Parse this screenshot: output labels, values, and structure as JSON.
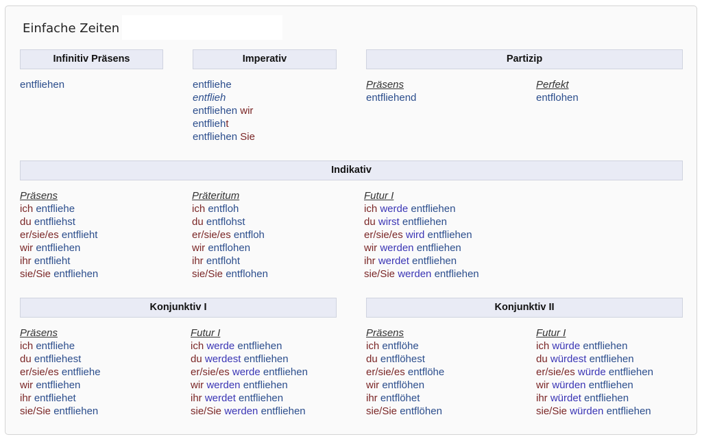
{
  "title": "Einfache Zeiten",
  "headers": [
    "Infinitiv Präsens",
    "Imperativ",
    "Partizip",
    "Indikativ",
    "Konjunktiv I",
    "Konjunktiv II"
  ],
  "colors": {
    "pronoun": "#7a2626",
    "verb": "#2b4d8c",
    "auxiliary": "#3a35b5",
    "header_bg": "#e9ebf5"
  },
  "blocks": [
    {
      "label": "",
      "lines": [
        [
          [
            "entfliehen",
            "v"
          ]
        ]
      ]
    },
    {
      "label": "",
      "lines": [
        [
          [
            "entfliehe",
            "v"
          ]
        ],
        [
          [
            "entflieh",
            "vi"
          ]
        ],
        [
          [
            "entfliehen ",
            "v"
          ],
          [
            "wir",
            "p"
          ]
        ],
        [
          [
            "entflieh",
            "v"
          ],
          [
            "t",
            "p"
          ]
        ],
        [
          [
            "entfliehen ",
            "v"
          ],
          [
            "Sie",
            "p"
          ]
        ]
      ]
    },
    {
      "label": "Präsens",
      "lines": [
        [
          [
            "entfliehend",
            "v"
          ]
        ]
      ]
    },
    {
      "label": "Perfekt",
      "lines": [
        [
          [
            "entflohen",
            "v"
          ]
        ]
      ]
    },
    {
      "label": "Präsens",
      "lines": [
        [
          [
            "ich ",
            "p"
          ],
          [
            "entfliehe",
            "v"
          ]
        ],
        [
          [
            "du ",
            "p"
          ],
          [
            "entfliehst",
            "v"
          ]
        ],
        [
          [
            "er/sie/es ",
            "p"
          ],
          [
            "entflieht",
            "v"
          ]
        ],
        [
          [
            "wir ",
            "p"
          ],
          [
            "entfliehen",
            "v"
          ]
        ],
        [
          [
            "ihr ",
            "p"
          ],
          [
            "entflieht",
            "v"
          ]
        ],
        [
          [
            "sie/Sie ",
            "p"
          ],
          [
            "entfliehen",
            "v"
          ]
        ]
      ]
    },
    {
      "label": "Präteritum",
      "lines": [
        [
          [
            "ich ",
            "p"
          ],
          [
            "entfloh",
            "v"
          ]
        ],
        [
          [
            "du ",
            "p"
          ],
          [
            "entflohst",
            "v"
          ]
        ],
        [
          [
            "er/sie/es ",
            "p"
          ],
          [
            "entfloh",
            "v"
          ]
        ],
        [
          [
            "wir ",
            "p"
          ],
          [
            "entflohen",
            "v"
          ]
        ],
        [
          [
            "ihr ",
            "p"
          ],
          [
            "entfloht",
            "v"
          ]
        ],
        [
          [
            "sie/Sie ",
            "p"
          ],
          [
            "entflohen",
            "v"
          ]
        ]
      ]
    },
    {
      "label": "Futur I",
      "lines": [
        [
          [
            "ich ",
            "p"
          ],
          [
            "werde ",
            "a"
          ],
          [
            "entfliehen",
            "v"
          ]
        ],
        [
          [
            "du ",
            "p"
          ],
          [
            "wirst ",
            "a"
          ],
          [
            "entfliehen",
            "v"
          ]
        ],
        [
          [
            "er/sie/es ",
            "p"
          ],
          [
            "wird ",
            "a"
          ],
          [
            "entfliehen",
            "v"
          ]
        ],
        [
          [
            "wir ",
            "p"
          ],
          [
            "werden ",
            "a"
          ],
          [
            "entfliehen",
            "v"
          ]
        ],
        [
          [
            "ihr ",
            "p"
          ],
          [
            "werdet ",
            "a"
          ],
          [
            "entfliehen",
            "v"
          ]
        ],
        [
          [
            "sie/Sie ",
            "p"
          ],
          [
            "werden ",
            "a"
          ],
          [
            "entfliehen",
            "v"
          ]
        ]
      ]
    },
    {
      "label": "Präsens",
      "lines": [
        [
          [
            "ich ",
            "p"
          ],
          [
            "entfliehe",
            "v"
          ]
        ],
        [
          [
            "du ",
            "p"
          ],
          [
            "entfliehest",
            "v"
          ]
        ],
        [
          [
            "er/sie/es ",
            "p"
          ],
          [
            "entfliehe",
            "v"
          ]
        ],
        [
          [
            "wir ",
            "p"
          ],
          [
            "entfliehen",
            "v"
          ]
        ],
        [
          [
            "ihr ",
            "p"
          ],
          [
            "entfliehet",
            "v"
          ]
        ],
        [
          [
            "sie/Sie ",
            "p"
          ],
          [
            "entfliehen",
            "v"
          ]
        ]
      ]
    },
    {
      "label": "Futur I",
      "lines": [
        [
          [
            "ich ",
            "p"
          ],
          [
            "werde ",
            "a"
          ],
          [
            "entfliehen",
            "v"
          ]
        ],
        [
          [
            "du ",
            "p"
          ],
          [
            "werdest ",
            "a"
          ],
          [
            "entfliehen",
            "v"
          ]
        ],
        [
          [
            "er/sie/es ",
            "p"
          ],
          [
            "werde ",
            "a"
          ],
          [
            "entfliehen",
            "v"
          ]
        ],
        [
          [
            "wir ",
            "p"
          ],
          [
            "werden ",
            "a"
          ],
          [
            "entfliehen",
            "v"
          ]
        ],
        [
          [
            "ihr ",
            "p"
          ],
          [
            "werdet ",
            "a"
          ],
          [
            "entfliehen",
            "v"
          ]
        ],
        [
          [
            "sie/Sie ",
            "p"
          ],
          [
            "werden ",
            "a"
          ],
          [
            "entfliehen",
            "v"
          ]
        ]
      ]
    },
    {
      "label": "Präsens",
      "lines": [
        [
          [
            "ich ",
            "p"
          ],
          [
            "entflöhe",
            "v"
          ]
        ],
        [
          [
            "du ",
            "p"
          ],
          [
            "entflöhest",
            "v"
          ]
        ],
        [
          [
            "er/sie/es ",
            "p"
          ],
          [
            "entflöhe",
            "v"
          ]
        ],
        [
          [
            "wir ",
            "p"
          ],
          [
            "entflöhen",
            "v"
          ]
        ],
        [
          [
            "ihr ",
            "p"
          ],
          [
            "entflöhet",
            "v"
          ]
        ],
        [
          [
            "sie/Sie ",
            "p"
          ],
          [
            "entflöhen",
            "v"
          ]
        ]
      ]
    },
    {
      "label": "Futur I",
      "lines": [
        [
          [
            "ich ",
            "p"
          ],
          [
            "würde ",
            "a"
          ],
          [
            "entfliehen",
            "v"
          ]
        ],
        [
          [
            "du ",
            "p"
          ],
          [
            "würdest ",
            "a"
          ],
          [
            "entfliehen",
            "v"
          ]
        ],
        [
          [
            "er/sie/es ",
            "p"
          ],
          [
            "würde ",
            "a"
          ],
          [
            "entfliehen",
            "v"
          ]
        ],
        [
          [
            "wir ",
            "p"
          ],
          [
            "würden ",
            "a"
          ],
          [
            "entfliehen",
            "v"
          ]
        ],
        [
          [
            "ihr ",
            "p"
          ],
          [
            "würdet ",
            "a"
          ],
          [
            "entfliehen",
            "v"
          ]
        ],
        [
          [
            "sie/Sie ",
            "p"
          ],
          [
            "würden ",
            "a"
          ],
          [
            "entfliehen",
            "v"
          ]
        ]
      ]
    }
  ]
}
